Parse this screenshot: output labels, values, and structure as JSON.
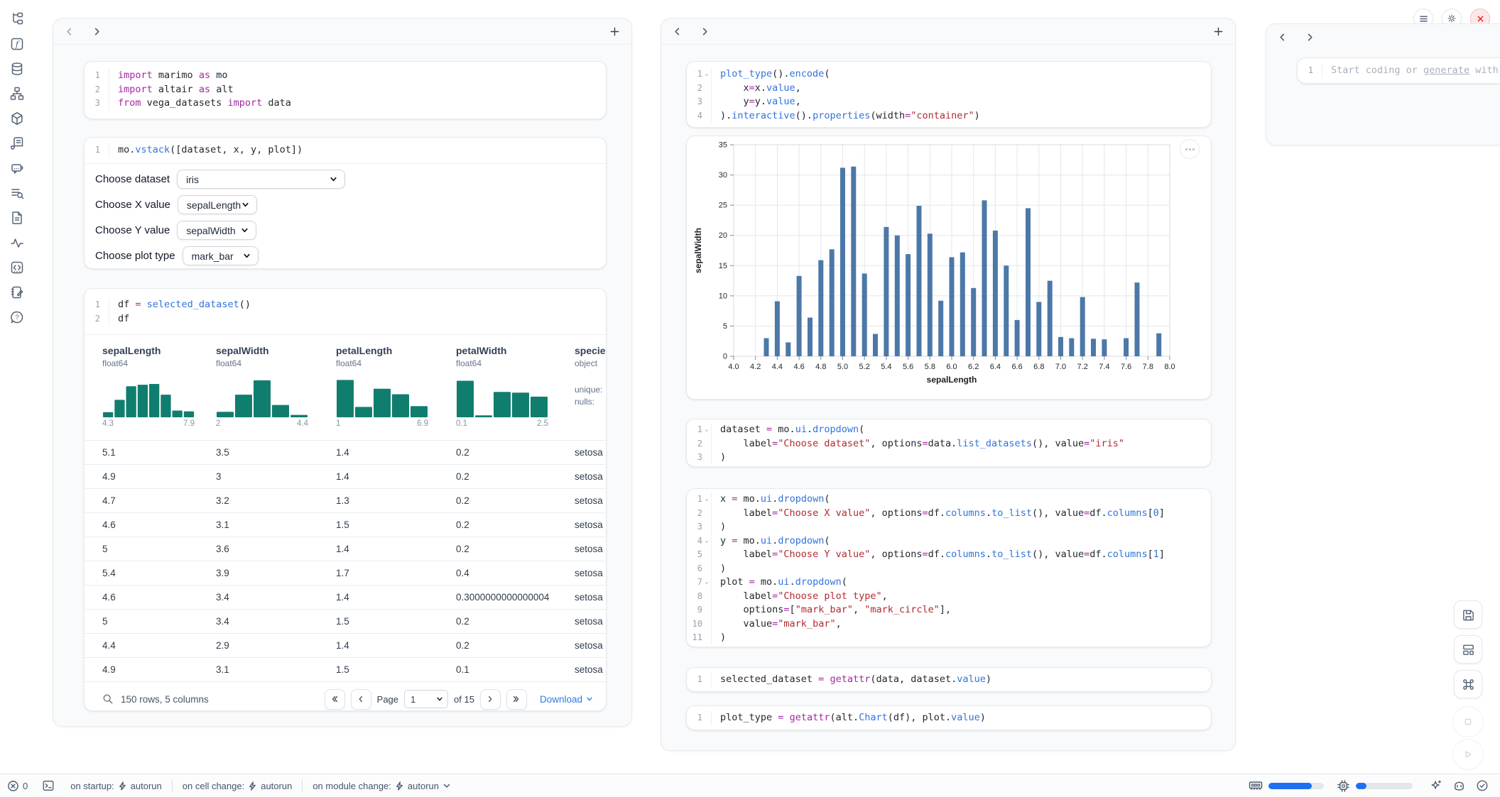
{
  "sidebar": {
    "icons": [
      "file-tree",
      "functions",
      "datasources",
      "dependency-graph",
      "packages",
      "logs",
      "ai-chat",
      "outline-search",
      "snippets",
      "tracing",
      "code-cells",
      "scratchpad",
      "help"
    ]
  },
  "window_controls": {
    "icons": [
      "menu",
      "settings",
      "shutdown"
    ]
  },
  "colors": {
    "keyword": "#a626a4",
    "operator": "#a626a4",
    "function": "#3273dc",
    "string": "#b22b31",
    "number": "#3273dc",
    "plain": "#24292e",
    "hist_bar": "#107e6e",
    "chart_bar": "#4c78a8",
    "link": "#2e7ce0",
    "accent": "#1f6ff2",
    "danger": "#e02424"
  },
  "left_panel": {
    "cells": {
      "imports": {
        "folds": [],
        "lines": [
          [
            [
              "k",
              "import"
            ],
            [
              "p",
              " marimo "
            ],
            [
              "k",
              "as"
            ],
            [
              "p",
              " mo"
            ]
          ],
          [
            [
              "k",
              "import"
            ],
            [
              "p",
              " altair "
            ],
            [
              "k",
              "as"
            ],
            [
              "p",
              " alt"
            ]
          ],
          [
            [
              "k",
              "from"
            ],
            [
              "p",
              " vega_datasets "
            ],
            [
              "k",
              "import"
            ],
            [
              "p",
              " data"
            ]
          ]
        ]
      },
      "vstack": {
        "folds": [],
        "lines": [
          [
            [
              "p",
              "mo."
            ],
            [
              "f",
              "vstack"
            ],
            [
              "p",
              "([dataset, x, y, plot])"
            ]
          ]
        ]
      },
      "df": {
        "folds": [],
        "lines": [
          [
            [
              "p",
              "df "
            ],
            [
              "o",
              "="
            ],
            [
              "p",
              " "
            ],
            [
              "f",
              "selected_dataset"
            ],
            [
              "p",
              "()"
            ]
          ],
          [
            [
              "p",
              "df"
            ]
          ]
        ]
      }
    },
    "controls": [
      {
        "label": "Choose dataset",
        "value": "iris"
      },
      {
        "label": "Choose X value",
        "value": "sepalLength"
      },
      {
        "label": "Choose Y value",
        "value": "sepalWidth"
      },
      {
        "label": "Choose plot type",
        "value": "mark_bar"
      }
    ],
    "table": {
      "columns": [
        {
          "name": "sepalLength",
          "dtype": "float64",
          "min": "4.3",
          "max": "7.9",
          "hist": [
            0.13,
            0.44,
            0.78,
            0.82,
            0.84,
            0.57,
            0.17,
            0.15
          ]
        },
        {
          "name": "sepalWidth",
          "dtype": "float64",
          "min": "2",
          "max": "4.4",
          "hist": [
            0.14,
            0.57,
            0.93,
            0.31,
            0.06
          ]
        },
        {
          "name": "petalLength",
          "dtype": "float64",
          "min": "1",
          "max": "6.9",
          "hist": [
            0.94,
            0.26,
            0.72,
            0.58,
            0.28
          ]
        },
        {
          "name": "petalWidth",
          "dtype": "float64",
          "min": "0.1",
          "max": "2.5",
          "hist": [
            0.92,
            0.05,
            0.64,
            0.62,
            0.52
          ]
        },
        {
          "name": "species",
          "dtype": "object",
          "stats": [
            "unique:",
            "nulls:"
          ]
        }
      ],
      "rows": [
        [
          "5.1",
          "3.5",
          "1.4",
          "0.2",
          "setosa"
        ],
        [
          "4.9",
          "3",
          "1.4",
          "0.2",
          "setosa"
        ],
        [
          "4.7",
          "3.2",
          "1.3",
          "0.2",
          "setosa"
        ],
        [
          "4.6",
          "3.1",
          "1.5",
          "0.2",
          "setosa"
        ],
        [
          "5",
          "3.6",
          "1.4",
          "0.2",
          "setosa"
        ],
        [
          "5.4",
          "3.9",
          "1.7",
          "0.4",
          "setosa"
        ],
        [
          "4.6",
          "3.4",
          "1.4",
          "0.3000000000000004",
          "setosa"
        ],
        [
          "5",
          "3.4",
          "1.5",
          "0.2",
          "setosa"
        ],
        [
          "4.4",
          "2.9",
          "1.4",
          "0.2",
          "setosa"
        ],
        [
          "4.9",
          "3.1",
          "1.5",
          "0.1",
          "setosa"
        ]
      ],
      "footer": {
        "summary": "150 rows, 5 columns",
        "page_label": "Page",
        "page_value": "1",
        "of_label": "of 15",
        "download_label": "Download"
      }
    }
  },
  "middle_panel": {
    "cells": {
      "plot_encode": {
        "folds": [
          1
        ],
        "lines": [
          [
            [
              "f",
              "plot_type"
            ],
            [
              "p",
              "()."
            ],
            [
              "f",
              "encode"
            ],
            [
              "p",
              "("
            ]
          ],
          [
            [
              "p",
              "    x"
            ],
            [
              "o",
              "="
            ],
            [
              "p",
              "x."
            ],
            [
              "f",
              "value"
            ],
            [
              "p",
              ","
            ]
          ],
          [
            [
              "p",
              "    y"
            ],
            [
              "o",
              "="
            ],
            [
              "p",
              "y."
            ],
            [
              "f",
              "value"
            ],
            [
              "p",
              ","
            ]
          ],
          [
            [
              "p",
              ")."
            ],
            [
              "f",
              "interactive"
            ],
            [
              "p",
              "()."
            ],
            [
              "f",
              "properties"
            ],
            [
              "p",
              "(width"
            ],
            [
              "o",
              "="
            ],
            [
              "s",
              "\"container\""
            ],
            [
              "p",
              ")"
            ]
          ]
        ]
      },
      "dataset_dropdown": {
        "folds": [
          1
        ],
        "lines": [
          [
            [
              "p",
              "dataset "
            ],
            [
              "o",
              "="
            ],
            [
              "p",
              " mo."
            ],
            [
              "f",
              "ui"
            ],
            [
              "p",
              "."
            ],
            [
              "f",
              "dropdown"
            ],
            [
              "p",
              "("
            ]
          ],
          [
            [
              "p",
              "    label"
            ],
            [
              "o",
              "="
            ],
            [
              "s",
              "\"Choose dataset\""
            ],
            [
              "p",
              ", options"
            ],
            [
              "o",
              "="
            ],
            [
              "p",
              "data."
            ],
            [
              "f",
              "list_datasets"
            ],
            [
              "p",
              "(), value"
            ],
            [
              "o",
              "="
            ],
            [
              "s",
              "\"iris\""
            ]
          ],
          [
            [
              "p",
              ")"
            ]
          ]
        ]
      },
      "xy_plot_dropdowns": {
        "folds": [
          1,
          4,
          7
        ],
        "lines": [
          [
            [
              "p",
              "x "
            ],
            [
              "o",
              "="
            ],
            [
              "p",
              " mo."
            ],
            [
              "f",
              "ui"
            ],
            [
              "p",
              "."
            ],
            [
              "f",
              "dropdown"
            ],
            [
              "p",
              "("
            ]
          ],
          [
            [
              "p",
              "    label"
            ],
            [
              "o",
              "="
            ],
            [
              "s",
              "\"Choose X value\""
            ],
            [
              "p",
              ", options"
            ],
            [
              "o",
              "="
            ],
            [
              "p",
              "df."
            ],
            [
              "f",
              "columns"
            ],
            [
              "p",
              "."
            ],
            [
              "f",
              "to_list"
            ],
            [
              "p",
              "(), value"
            ],
            [
              "o",
              "="
            ],
            [
              "p",
              "df."
            ],
            [
              "f",
              "columns"
            ],
            [
              "p",
              "["
            ],
            [
              "n",
              "0"
            ],
            [
              "p",
              "]"
            ]
          ],
          [
            [
              "p",
              ")"
            ]
          ],
          [
            [
              "p",
              "y "
            ],
            [
              "o",
              "="
            ],
            [
              "p",
              " mo."
            ],
            [
              "f",
              "ui"
            ],
            [
              "p",
              "."
            ],
            [
              "f",
              "dropdown"
            ],
            [
              "p",
              "("
            ]
          ],
          [
            [
              "p",
              "    label"
            ],
            [
              "o",
              "="
            ],
            [
              "s",
              "\"Choose Y value\""
            ],
            [
              "p",
              ", options"
            ],
            [
              "o",
              "="
            ],
            [
              "p",
              "df."
            ],
            [
              "f",
              "columns"
            ],
            [
              "p",
              "."
            ],
            [
              "f",
              "to_list"
            ],
            [
              "p",
              "(), value"
            ],
            [
              "o",
              "="
            ],
            [
              "p",
              "df."
            ],
            [
              "f",
              "columns"
            ],
            [
              "p",
              "["
            ],
            [
              "n",
              "1"
            ],
            [
              "p",
              "]"
            ]
          ],
          [
            [
              "p",
              ")"
            ]
          ],
          [
            [
              "p",
              "plot "
            ],
            [
              "o",
              "="
            ],
            [
              "p",
              " mo."
            ],
            [
              "f",
              "ui"
            ],
            [
              "p",
              "."
            ],
            [
              "f",
              "dropdown"
            ],
            [
              "p",
              "("
            ]
          ],
          [
            [
              "p",
              "    label"
            ],
            [
              "o",
              "="
            ],
            [
              "s",
              "\"Choose plot type\""
            ],
            [
              "p",
              ","
            ]
          ],
          [
            [
              "p",
              "    options"
            ],
            [
              "o",
              "="
            ],
            [
              "p",
              "["
            ],
            [
              "s",
              "\"mark_bar\""
            ],
            [
              "p",
              ", "
            ],
            [
              "s",
              "\"mark_circle\""
            ],
            [
              "p",
              "],"
            ]
          ],
          [
            [
              "p",
              "    value"
            ],
            [
              "o",
              "="
            ],
            [
              "s",
              "\"mark_bar\""
            ],
            [
              "p",
              ","
            ]
          ],
          [
            [
              "p",
              ")"
            ]
          ]
        ]
      },
      "selected_dataset": {
        "folds": [],
        "lines": [
          [
            [
              "p",
              "selected_dataset "
            ],
            [
              "o",
              "="
            ],
            [
              "p",
              " "
            ],
            [
              "k",
              "getattr"
            ],
            [
              "p",
              "(data, dataset."
            ],
            [
              "f",
              "value"
            ],
            [
              "p",
              ")"
            ]
          ]
        ]
      },
      "plot_type": {
        "folds": [],
        "lines": [
          [
            [
              "p",
              "plot_type "
            ],
            [
              "o",
              "="
            ],
            [
              "p",
              " "
            ],
            [
              "k",
              "getattr"
            ],
            [
              "p",
              "(alt."
            ],
            [
              "f",
              "Chart"
            ],
            [
              "p",
              "(df), plot."
            ],
            [
              "f",
              "value"
            ],
            [
              "p",
              ")"
            ]
          ]
        ]
      }
    }
  },
  "chart_data": {
    "type": "bar",
    "xlabel": "sepalLength",
    "ylabel": "sepalWidth",
    "x": [
      4.3,
      4.4,
      4.5,
      4.6,
      4.7,
      4.8,
      4.9,
      5.0,
      5.1,
      5.2,
      5.3,
      5.4,
      5.5,
      5.6,
      5.7,
      5.8,
      5.9,
      6.0,
      6.1,
      6.2,
      6.3,
      6.4,
      6.5,
      6.6,
      6.7,
      6.8,
      6.9,
      7.0,
      7.1,
      7.2,
      7.3,
      7.4,
      7.6,
      7.7,
      7.9
    ],
    "values": [
      3.0,
      9.1,
      2.3,
      13.3,
      6.4,
      15.9,
      17.7,
      31.2,
      31.4,
      13.7,
      3.7,
      21.4,
      20.0,
      16.9,
      24.9,
      20.3,
      9.2,
      16.4,
      17.2,
      11.3,
      25.8,
      20.8,
      15.0,
      6.0,
      24.5,
      9.0,
      12.5,
      3.2,
      3.0,
      9.8,
      2.9,
      2.8,
      3.0,
      12.2,
      3.8
    ],
    "xlim": [
      4.0,
      8.0
    ],
    "ylim": [
      0,
      35
    ],
    "x_tick_step": 0.2,
    "y_tick_step": 5,
    "grid": true,
    "legend": false,
    "bar_color": "#4c78a8"
  },
  "right_panel": {
    "scratchpad": {
      "line_number": "1",
      "placeholder_parts": [
        {
          "text": "Start coding or ",
          "underline": false
        },
        {
          "text": "generate",
          "underline": true
        },
        {
          "text": " with",
          "underline": false
        }
      ]
    }
  },
  "statusbar": {
    "error_count": "0",
    "segments": [
      {
        "label": "on startup:",
        "value": "autorun"
      },
      {
        "label": "on cell change:",
        "value": "autorun"
      },
      {
        "label": "on module change:",
        "value": "autorun"
      }
    ],
    "meters": {
      "ram_fill": 0.78,
      "cpu_fill": 0.19
    }
  }
}
